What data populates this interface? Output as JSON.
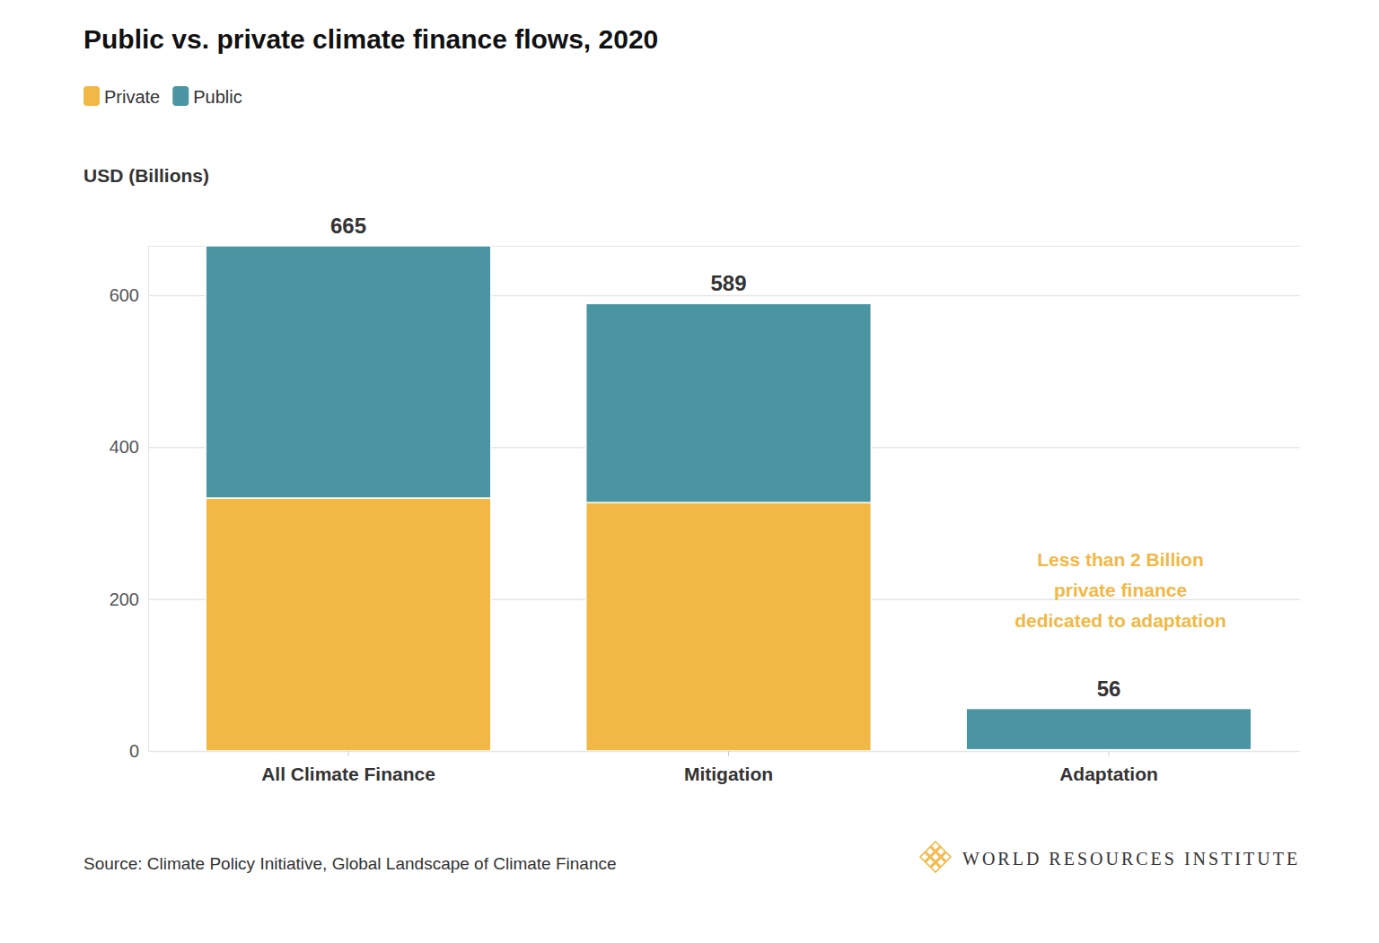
{
  "chart_data": {
    "type": "bar",
    "title": "Public vs. private climate finance flows, 2020",
    "y_label": "USD (Billions)",
    "categories": [
      "All Climate Finance",
      "Mitigation",
      "Adaptation"
    ],
    "series": [
      {
        "name": "Private",
        "color": "#f2b845",
        "values": [
          333,
          327,
          1.6
        ]
      },
      {
        "name": "Public",
        "color": "#4b95a3",
        "values": [
          332,
          262,
          54.4
        ]
      }
    ],
    "totals": [
      665,
      589,
      56
    ],
    "annotation": [
      "Less than 2 Billion",
      "private finance",
      "dedicated to adaptation"
    ],
    "annotation_color": "#f2b845",
    "source": "Source: Climate Policy Initiative, Global Landscape of Climate Finance",
    "credit": "WORLD RESOURCES INSTITUTE",
    "ylim": [
      0,
      665
    ],
    "yticks": [
      0,
      200,
      400,
      600
    ],
    "stacked": true,
    "grid": true,
    "legend": "top-left"
  }
}
